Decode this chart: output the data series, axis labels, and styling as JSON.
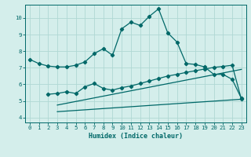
{
  "bg_color": "#d4eeeb",
  "line_color": "#006868",
  "grid_color": "#b0d8d4",
  "xlabel": "Humidex (Indice chaleur)",
  "xlim": [
    -0.5,
    23.5
  ],
  "ylim": [
    3.7,
    10.8
  ],
  "xticks": [
    0,
    1,
    2,
    3,
    4,
    5,
    6,
    7,
    8,
    9,
    10,
    11,
    12,
    13,
    14,
    15,
    16,
    17,
    18,
    19,
    20,
    21,
    22,
    23
  ],
  "yticks": [
    4,
    5,
    6,
    7,
    8,
    9,
    10
  ],
  "main_x": [
    0,
    1,
    2,
    3,
    4,
    5,
    6,
    7,
    8,
    9,
    10,
    11,
    12,
    13,
    14,
    15,
    16,
    17,
    18,
    19,
    20,
    21,
    22,
    23
  ],
  "main_y": [
    7.5,
    7.25,
    7.1,
    7.05,
    7.05,
    7.15,
    7.35,
    7.85,
    8.15,
    7.75,
    9.35,
    9.75,
    9.55,
    10.1,
    10.55,
    9.1,
    8.55,
    7.25,
    7.2,
    7.05,
    6.6,
    6.6,
    6.3,
    5.15
  ],
  "line2_x": [
    2,
    3,
    4,
    5,
    6,
    7,
    8,
    9,
    10,
    11,
    12,
    13,
    14,
    15,
    16,
    17,
    18,
    19,
    20,
    21,
    22,
    23
  ],
  "line2_y": [
    5.4,
    5.45,
    5.55,
    5.45,
    5.85,
    6.05,
    5.75,
    5.65,
    5.8,
    5.9,
    6.05,
    6.2,
    6.35,
    6.5,
    6.6,
    6.72,
    6.82,
    6.92,
    7.02,
    7.08,
    7.15,
    5.1
  ],
  "line3_x": [
    3,
    23
  ],
  "line3_y": [
    4.75,
    6.9
  ],
  "line4_x": [
    3,
    23
  ],
  "line4_y": [
    4.35,
    5.1
  ]
}
